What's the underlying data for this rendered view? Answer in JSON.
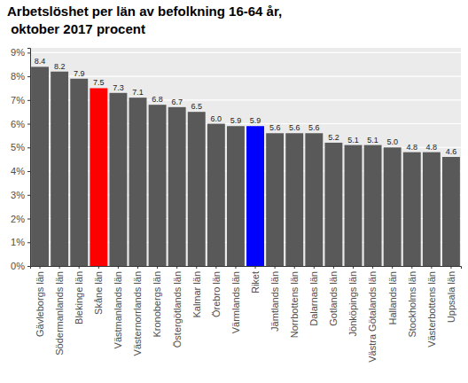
{
  "chart_data": {
    "type": "bar",
    "title": "Arbetslöshet per län av befolkning 16-64 år,\n oktober 2017 procent",
    "categories": [
      "Gävleborgs län",
      "Södermanlands län",
      "Blekinge län",
      "Skåne län",
      "Västmanlands län",
      "Västernorrlands län",
      "Kronobergs län",
      "Östergötlands län",
      "Kalmar län",
      "Örebro län",
      "Värmlands län",
      "Riket",
      "Jämtlands län",
      "Norrbottens län",
      "Dalarnas län",
      "Gotlands län",
      "Jönköpings län",
      "Västra Götalands län",
      "Hallands län",
      "Stockholms län",
      "Västerbottens län",
      "Uppsala län"
    ],
    "values": [
      8.4,
      8.2,
      7.9,
      7.5,
      7.3,
      7.1,
      6.8,
      6.7,
      6.5,
      6.0,
      5.9,
      5.9,
      5.6,
      5.6,
      5.6,
      5.2,
      5.1,
      5.1,
      5.0,
      4.8,
      4.8,
      4.6
    ],
    "value_labels": [
      "8.4",
      "8.2",
      "7.9",
      "7.5",
      "7.3",
      "7.1",
      "6.8",
      "6.7",
      "6.5",
      "6.0",
      "5.9",
      "5.9",
      "5.6",
      "5.6",
      "5.6",
      "5.2",
      "5.1",
      "5.1",
      "5.0",
      "4.8",
      "4.8",
      "4.6"
    ],
    "colors": [
      "#595959",
      "#595959",
      "#595959",
      "#ff0000",
      "#595959",
      "#595959",
      "#595959",
      "#595959",
      "#595959",
      "#595959",
      "#595959",
      "#0000ff",
      "#595959",
      "#595959",
      "#595959",
      "#595959",
      "#595959",
      "#595959",
      "#595959",
      "#595959",
      "#595959",
      "#595959"
    ],
    "ylim": [
      0,
      9.2
    ],
    "yticks": [
      {
        "value": 0,
        "label": "0%"
      },
      {
        "value": 1,
        "label": "1%"
      },
      {
        "value": 2,
        "label": "2%"
      },
      {
        "value": 3,
        "label": "3%"
      },
      {
        "value": 4,
        "label": "4%"
      },
      {
        "value": 5,
        "label": "5%"
      },
      {
        "value": 6,
        "label": "6%"
      },
      {
        "value": 7,
        "label": "7%"
      },
      {
        "value": 8,
        "label": "8%"
      },
      {
        "value": 9,
        "label": "9%"
      }
    ],
    "grid": true,
    "data_labels": true
  }
}
